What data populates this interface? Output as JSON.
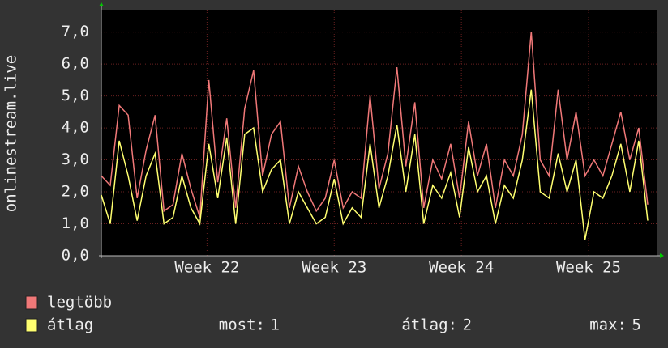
{
  "chart_data": {
    "type": "line",
    "y_axis_label": "onlinestream.live",
    "x": [
      0,
      0.5,
      1,
      1.5,
      2,
      2.5,
      3,
      3.5,
      4,
      4.5,
      5,
      5.5,
      6,
      6.5,
      7,
      7.5,
      8,
      8.5,
      9,
      9.5,
      10,
      10.5,
      11,
      11.5,
      12,
      12.5,
      13,
      13.5,
      14,
      14.5,
      15,
      15.5,
      16,
      16.5,
      17,
      17.5,
      18,
      18.5,
      19,
      19.5,
      20,
      20.5,
      21,
      21.5,
      22,
      22.5,
      23,
      23.5,
      24,
      24.5,
      25,
      25.5,
      26,
      26.5,
      27,
      27.5,
      28,
      28.5,
      29,
      29.5,
      30,
      30.5
    ],
    "series": [
      {
        "name": "legtöbb",
        "color": "#f07878",
        "values": [
          2.5,
          2.2,
          4.7,
          4.4,
          1.8,
          3.3,
          4.4,
          1.4,
          1.6,
          3.2,
          2.1,
          1.2,
          5.5,
          2.3,
          4.3,
          1.5,
          4.6,
          5.8,
          2.5,
          3.8,
          4.2,
          1.5,
          2.8,
          2.0,
          1.4,
          1.8,
          3.0,
          1.5,
          2.0,
          1.8,
          5.0,
          2.1,
          3.2,
          5.9,
          2.8,
          4.8,
          1.5,
          3.0,
          2.4,
          3.5,
          1.8,
          4.2,
          2.5,
          3.5,
          1.5,
          3.0,
          2.5,
          3.8,
          7.0,
          3.0,
          2.5,
          5.2,
          3.0,
          4.5,
          2.5,
          3.0,
          2.5,
          3.5,
          4.5,
          3.0,
          4.0,
          1.6
        ]
      },
      {
        "name": "átlag",
        "color": "#ffff70",
        "values": [
          1.9,
          1.0,
          3.6,
          2.5,
          1.1,
          2.5,
          3.2,
          1.0,
          1.2,
          2.5,
          1.5,
          1.0,
          3.5,
          1.8,
          3.7,
          1.0,
          3.8,
          4.0,
          2.0,
          2.7,
          3.0,
          1.0,
          2.0,
          1.5,
          1.0,
          1.2,
          2.4,
          1.0,
          1.5,
          1.2,
          3.5,
          1.5,
          2.5,
          4.1,
          2.0,
          3.8,
          1.0,
          2.2,
          1.8,
          2.6,
          1.2,
          3.4,
          2.0,
          2.5,
          1.0,
          2.2,
          1.8,
          3.0,
          5.2,
          2.0,
          1.8,
          3.2,
          2.0,
          3.0,
          0.5,
          2.0,
          1.8,
          2.5,
          3.5,
          2.0,
          3.6,
          1.1
        ]
      }
    ],
    "xlim": [
      0,
      31
    ],
    "xticks": [
      {
        "value": 5.9,
        "label": "Week 22"
      },
      {
        "value": 13.0,
        "label": "Week 23"
      },
      {
        "value": 20.1,
        "label": "Week 24"
      },
      {
        "value": 27.2,
        "label": "Week 25"
      }
    ],
    "ylim": [
      0,
      7.7
    ],
    "yticks": [
      {
        "value": 0,
        "label": "0,0"
      },
      {
        "value": 1,
        "label": "1,0"
      },
      {
        "value": 2,
        "label": "2,0"
      },
      {
        "value": 3,
        "label": "3,0"
      },
      {
        "value": 4,
        "label": "4,0"
      },
      {
        "value": 5,
        "label": "5,0"
      },
      {
        "value": 6,
        "label": "6,0"
      },
      {
        "value": 7,
        "label": "7,0"
      }
    ],
    "grid": true,
    "stats": [
      {
        "label": "most:",
        "value": 1
      },
      {
        "label": "átlag:",
        "value": 2
      },
      {
        "label": "max:",
        "value": 5
      }
    ]
  }
}
